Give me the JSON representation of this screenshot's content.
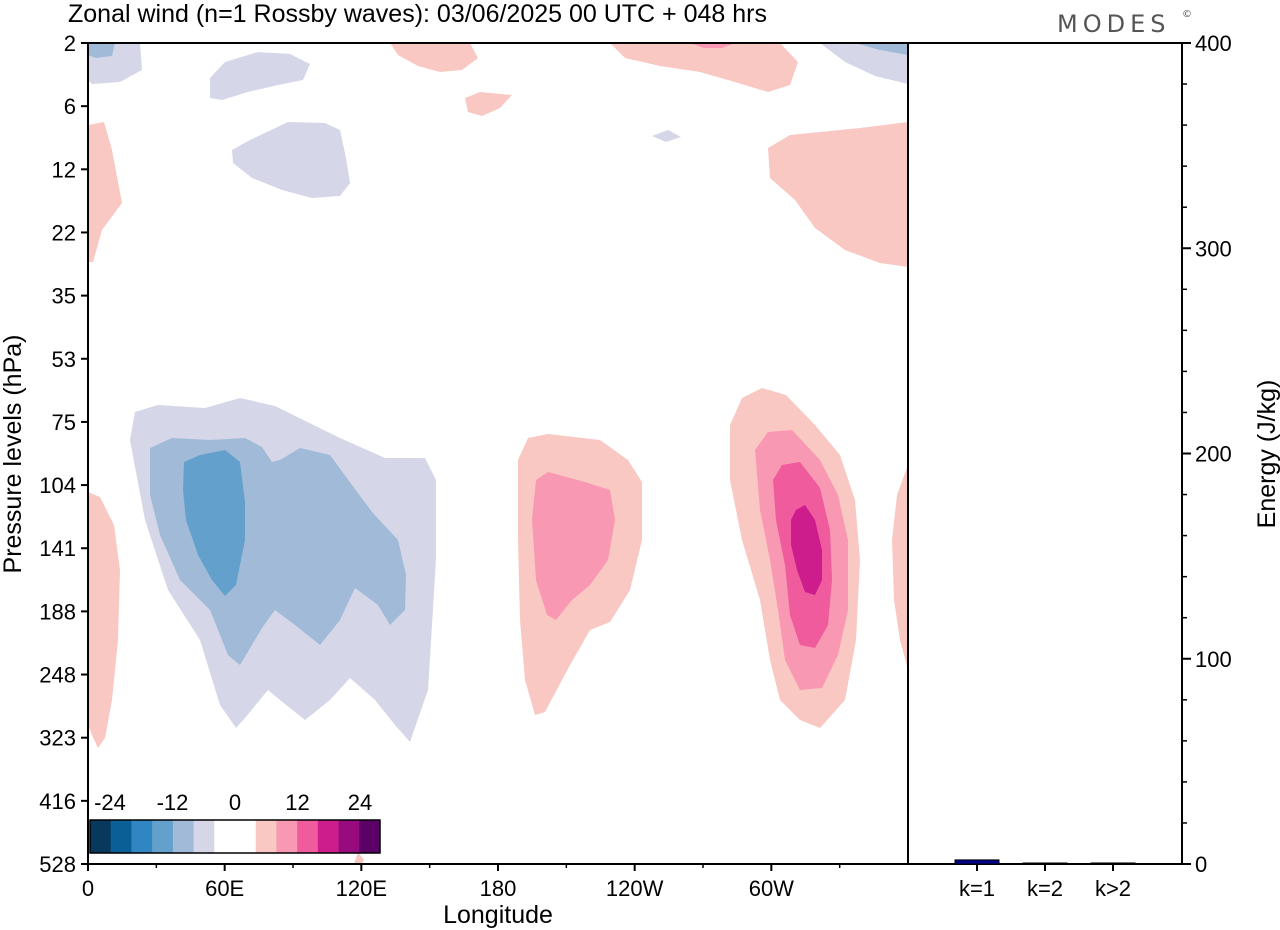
{
  "header": {
    "title": "Zonal wind (n=1 Rossby waves):  03/06/2025  00 UTC  + 048 hrs",
    "brand": "MODES",
    "brand_mark": "©"
  },
  "chart_data": [
    {
      "type": "heatmap",
      "title": "Zonal wind (n=1 Rossby waves):  03/06/2025  00 UTC  + 048 hrs",
      "xlabel": "Longitude",
      "ylabel": "Pressure levels (hPa)",
      "x_ticks": [
        "0",
        "60E",
        "120E",
        "180",
        "120W",
        "60W"
      ],
      "x_tick_degrees": [
        0,
        60,
        120,
        180,
        240,
        300
      ],
      "x_range": [
        0,
        360
      ],
      "y_ticks": [
        "2",
        "6",
        "12",
        "22",
        "35",
        "53",
        "75",
        "104",
        "141",
        "188",
        "248",
        "323",
        "416",
        "528"
      ],
      "y_scale": "categorical pressure levels (top to bottom)",
      "colorbar": {
        "labels": [
          "-24",
          "-12",
          "0",
          "12",
          "24"
        ],
        "colors": [
          "#08385c",
          "#0b5f97",
          "#2f86c0",
          "#64a0cc",
          "#a0bad8",
          "#d5d7e8",
          "#ffffff",
          "#ffffff",
          "#fac8c3",
          "#f898b3",
          "#ef5b9c",
          "#cd1d8c",
          "#980b7e",
          "#5a0066"
        ]
      },
      "contour_colors": {
        "neg_weak": "#d5d7e8",
        "neg_mid": "#a0bad8",
        "neg_strong": "#64a0cc",
        "pos_weak": "#fac8c3",
        "pos_mid": "#f898b3",
        "pos_strong": "#ef5b9c",
        "pos_max": "#cd1d8c"
      }
    },
    {
      "type": "bar",
      "ylabel": "Energy (J/kg)",
      "categories": [
        "k=1",
        "k=2",
        "k>2"
      ],
      "values": [
        2,
        0,
        0.5
      ],
      "ylim": [
        0,
        400
      ],
      "y_ticks": [
        "0",
        "100",
        "200",
        "300",
        "400"
      ],
      "bar_color": "#00008b"
    }
  ]
}
